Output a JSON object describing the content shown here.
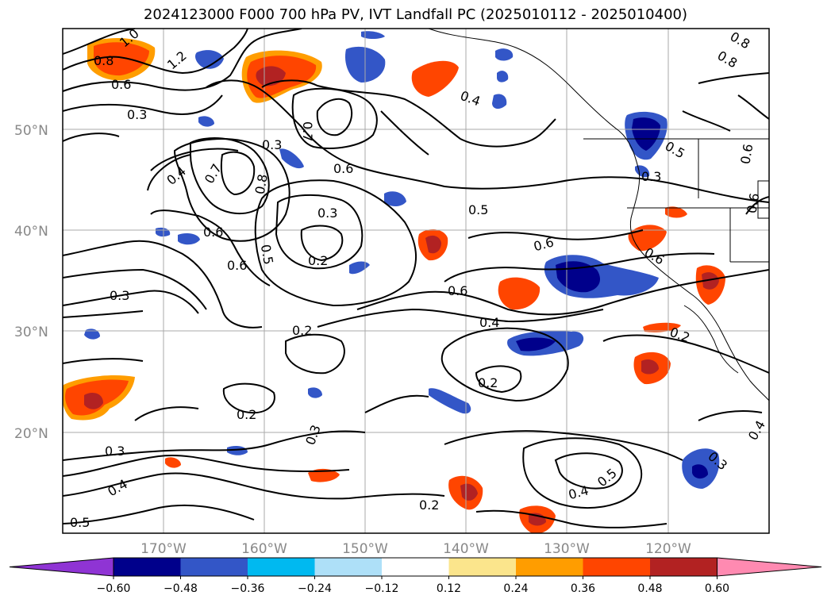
{
  "title": "2024123000 F000 700 hPa PV, IVT Landfall PC (2025010112 - 2025010400)",
  "lat_labels": [
    "50°N",
    "40°N",
    "30°N",
    "20°N"
  ],
  "lon_labels": [
    "170°W",
    "160°W",
    "150°W",
    "140°W",
    "130°W",
    "120°W"
  ],
  "contour_labels": [
    "0.3",
    "0.8",
    "0.6",
    "0.7",
    "0.3",
    "0.6",
    "0.4",
    "0.7",
    "0.8",
    "0.5",
    "0.3",
    "0.6",
    "0.2",
    "0.6",
    "0.5",
    "0.6",
    "0.3",
    "0.2",
    "0.4",
    "0.2",
    "0.2",
    "0.3",
    "0.2",
    "0.3",
    "0.4",
    "0.5",
    "0.4",
    "0.5",
    "0.4",
    "0.3",
    "0.3",
    "0.4",
    "0.6",
    "0.6",
    "0.5",
    "0.6",
    "0.2",
    "1.0",
    "1.2",
    "0.8",
    "0.8",
    "0.6"
  ],
  "colorbar": {
    "ticks": [
      "−0.60",
      "−0.48",
      "−0.36",
      "−0.24",
      "−0.12",
      "0.12",
      "0.24",
      "0.36",
      "0.48",
      "0.60"
    ],
    "colors": [
      "#8f34d4",
      "#00008b",
      "#3356c7",
      "#00b9f0",
      "#aee0f8",
      "#ffffff",
      "#fbe58c",
      "#ff9d00",
      "#ff4500",
      "#b22222",
      "#ff8ab1"
    ]
  }
}
